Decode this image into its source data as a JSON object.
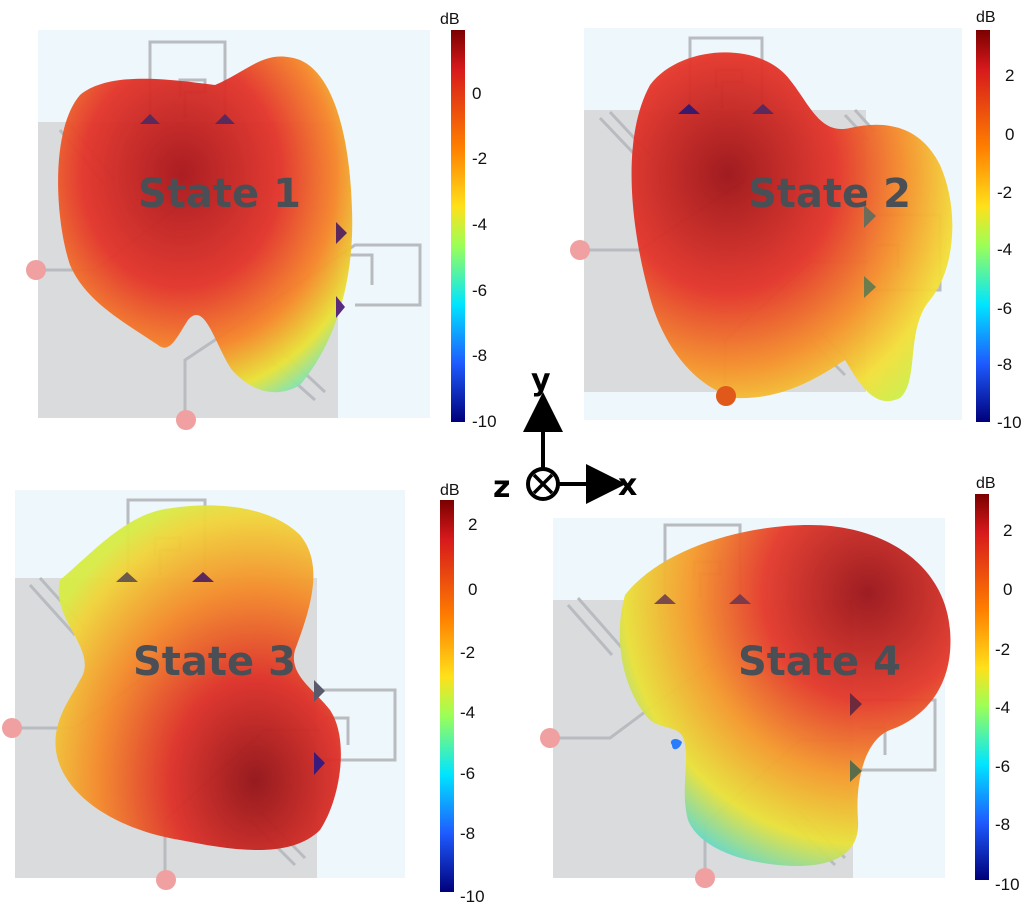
{
  "states": [
    {
      "label": "State 1"
    },
    {
      "label": "State 2"
    },
    {
      "label": "State 3"
    },
    {
      "label": "State 4"
    }
  ],
  "colorbar": {
    "unit": "dB",
    "tick_sets": [
      [
        "0",
        "-2",
        "-4",
        "-6",
        "-8",
        "-10"
      ],
      [
        "2",
        "0",
        "-2",
        "-4",
        "-6",
        "-8",
        "-10"
      ],
      [
        "2",
        "0",
        "-2",
        "-4",
        "-6",
        "-8",
        "-10"
      ],
      [
        "2",
        "0",
        "-2",
        "-4",
        "-6",
        "-8",
        "-10"
      ]
    ],
    "colors": [
      "#8b0000",
      "#e31a1c",
      "#ff7f00",
      "#ffd700",
      "#adff2f",
      "#00e5ff",
      "#1e90ff",
      "#000080"
    ]
  },
  "axes_triad": {
    "y": "y",
    "x": "x",
    "z": "z"
  },
  "colors": {
    "board": "#d9dadc",
    "pattern_high": "#c0262c",
    "pattern_mid": "#ff8a1f",
    "pattern_low": "#d8ea3c",
    "port": "#f0a0a0",
    "trace": "#b5b8bc"
  }
}
